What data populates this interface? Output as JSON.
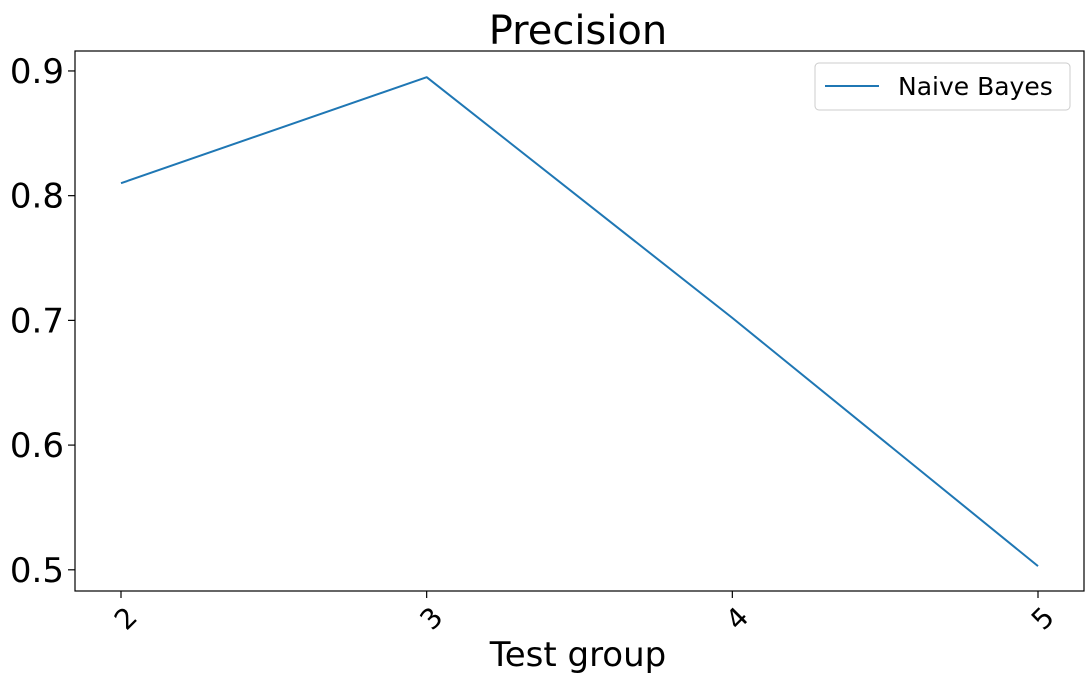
{
  "chart_data": {
    "type": "line",
    "title": "Precision",
    "xlabel": "Test group",
    "ylabel": "",
    "categories": [
      "2",
      "3",
      "4",
      "5"
    ],
    "series": [
      {
        "name": "Naive Bayes",
        "color": "#1f77b4",
        "values": [
          0.81,
          0.895,
          0.702,
          0.503
        ]
      }
    ],
    "ylim": [
      0.483,
      0.916
    ],
    "yticks": [
      "0.5",
      "0.6",
      "0.7",
      "0.8",
      "0.9"
    ],
    "grid": false,
    "legend_position": "top-right",
    "xtick_rotation": "45 degrees"
  }
}
